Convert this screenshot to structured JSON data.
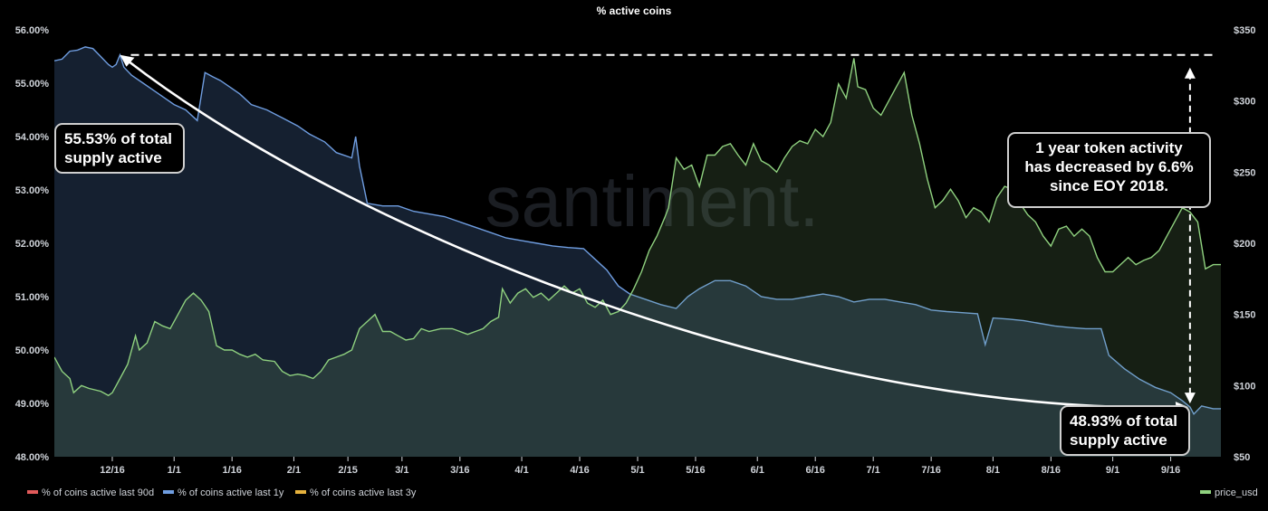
{
  "chart_data": {
    "type": "area",
    "title": "% active coins",
    "watermark": "santiment.",
    "left_axis": {
      "ticks": [
        "48.00%",
        "49.00%",
        "50.00%",
        "51.00%",
        "52.00%",
        "53.00%",
        "54.00%",
        "55.00%",
        "56.00%"
      ],
      "range": [
        48,
        56
      ]
    },
    "right_axis": {
      "ticks": [
        "$50",
        "$100",
        "$150",
        "$200",
        "$250",
        "$300",
        "$350"
      ],
      "range": [
        50,
        350
      ]
    },
    "x_ticks": [
      {
        "label": "12/16",
        "day": 0
      },
      {
        "label": "1/1",
        "day": 16
      },
      {
        "label": "1/16",
        "day": 31
      },
      {
        "label": "2/1",
        "day": 47
      },
      {
        "label": "2/15",
        "day": 61
      },
      {
        "label": "3/1",
        "day": 75
      },
      {
        "label": "3/16",
        "day": 90
      },
      {
        "label": "4/1",
        "day": 106
      },
      {
        "label": "4/16",
        "day": 121
      },
      {
        "label": "5/1",
        "day": 136
      },
      {
        "label": "5/16",
        "day": 151
      },
      {
        "label": "6/1",
        "day": 167
      },
      {
        "label": "6/16",
        "day": 182
      },
      {
        "label": "7/1",
        "day": 197
      },
      {
        "label": "7/16",
        "day": 212
      },
      {
        "label": "8/1",
        "day": 228
      },
      {
        "label": "8/16",
        "day": 243
      },
      {
        "label": "9/1",
        "day": 259
      },
      {
        "label": "9/16",
        "day": 274
      }
    ],
    "x_range": [
      -15,
      287
    ],
    "series": [
      {
        "name": "% of coins active last 1y",
        "color": "#6f9de0",
        "axis": "left",
        "points": [
          [
            -15,
            55.42
          ],
          [
            -13,
            55.45
          ],
          [
            -11,
            55.6
          ],
          [
            -9,
            55.62
          ],
          [
            -7,
            55.68
          ],
          [
            -5,
            55.65
          ],
          [
            -3,
            55.5
          ],
          [
            -1,
            55.35
          ],
          [
            0,
            55.3
          ],
          [
            1,
            55.35
          ],
          [
            2,
            55.53
          ],
          [
            3,
            55.3
          ],
          [
            5,
            55.15
          ],
          [
            8,
            55.0
          ],
          [
            11,
            54.85
          ],
          [
            14,
            54.7
          ],
          [
            16,
            54.6
          ],
          [
            19,
            54.5
          ],
          [
            22,
            54.3
          ],
          [
            24,
            55.2
          ],
          [
            26,
            55.12
          ],
          [
            28,
            55.05
          ],
          [
            30,
            54.95
          ],
          [
            33,
            54.8
          ],
          [
            36,
            54.6
          ],
          [
            40,
            54.5
          ],
          [
            44,
            54.35
          ],
          [
            48,
            54.2
          ],
          [
            51,
            54.05
          ],
          [
            55,
            53.9
          ],
          [
            58,
            53.7
          ],
          [
            62,
            53.6
          ],
          [
            63,
            54.0
          ],
          [
            64,
            53.45
          ],
          [
            66,
            52.75
          ],
          [
            70,
            52.7
          ],
          [
            74,
            52.7
          ],
          [
            78,
            52.6
          ],
          [
            82,
            52.55
          ],
          [
            86,
            52.5
          ],
          [
            90,
            52.4
          ],
          [
            94,
            52.3
          ],
          [
            98,
            52.2
          ],
          [
            102,
            52.1
          ],
          [
            106,
            52.05
          ],
          [
            110,
            52.0
          ],
          [
            114,
            51.95
          ],
          [
            118,
            51.92
          ],
          [
            122,
            51.9
          ],
          [
            125,
            51.7
          ],
          [
            128,
            51.5
          ],
          [
            131,
            51.2
          ],
          [
            134,
            51.05
          ],
          [
            138,
            50.95
          ],
          [
            142,
            50.85
          ],
          [
            146,
            50.78
          ],
          [
            149,
            51.0
          ],
          [
            152,
            51.15
          ],
          [
            156,
            51.3
          ],
          [
            160,
            51.3
          ],
          [
            164,
            51.2
          ],
          [
            168,
            51.0
          ],
          [
            172,
            50.95
          ],
          [
            176,
            50.95
          ],
          [
            180,
            51.0
          ],
          [
            184,
            51.05
          ],
          [
            188,
            51.0
          ],
          [
            192,
            50.9
          ],
          [
            196,
            50.95
          ],
          [
            200,
            50.95
          ],
          [
            204,
            50.9
          ],
          [
            208,
            50.85
          ],
          [
            212,
            50.75
          ],
          [
            216,
            50.72
          ],
          [
            220,
            50.7
          ],
          [
            224,
            50.68
          ],
          [
            226,
            50.1
          ],
          [
            228,
            50.6
          ],
          [
            232,
            50.58
          ],
          [
            236,
            50.55
          ],
          [
            240,
            50.5
          ],
          [
            244,
            50.45
          ],
          [
            248,
            50.42
          ],
          [
            252,
            50.4
          ],
          [
            256,
            50.4
          ],
          [
            258,
            49.9
          ],
          [
            262,
            49.65
          ],
          [
            266,
            49.45
          ],
          [
            270,
            49.3
          ],
          [
            274,
            49.2
          ],
          [
            277,
            49.05
          ],
          [
            279,
            48.93
          ],
          [
            280,
            48.8
          ],
          [
            282,
            48.95
          ],
          [
            285,
            48.9
          ],
          [
            287,
            48.9
          ]
        ]
      },
      {
        "name": "price_usd",
        "color": "#8fd17f",
        "axis": "right",
        "points": [
          [
            -15,
            120
          ],
          [
            -13,
            110
          ],
          [
            -11,
            105
          ],
          [
            -10,
            95
          ],
          [
            -8,
            100
          ],
          [
            -6,
            98
          ],
          [
            -3,
            96
          ],
          [
            -1,
            93
          ],
          [
            0,
            95
          ],
          [
            2,
            105
          ],
          [
            4,
            115
          ],
          [
            6,
            135
          ],
          [
            7,
            125
          ],
          [
            9,
            130
          ],
          [
            11,
            145
          ],
          [
            13,
            142
          ],
          [
            15,
            140
          ],
          [
            17,
            150
          ],
          [
            19,
            160
          ],
          [
            21,
            165
          ],
          [
            23,
            160
          ],
          [
            25,
            152
          ],
          [
            27,
            128
          ],
          [
            29,
            125
          ],
          [
            31,
            125
          ],
          [
            33,
            122
          ],
          [
            35,
            120
          ],
          [
            37,
            122
          ],
          [
            39,
            118
          ],
          [
            42,
            117
          ],
          [
            44,
            110
          ],
          [
            46,
            107
          ],
          [
            48,
            108
          ],
          [
            50,
            107
          ],
          [
            52,
            105
          ],
          [
            54,
            110
          ],
          [
            56,
            118
          ],
          [
            58,
            120
          ],
          [
            60,
            122
          ],
          [
            62,
            125
          ],
          [
            64,
            140
          ],
          [
            66,
            145
          ],
          [
            68,
            150
          ],
          [
            70,
            138
          ],
          [
            72,
            138
          ],
          [
            74,
            135
          ],
          [
            76,
            132
          ],
          [
            78,
            133
          ],
          [
            80,
            140
          ],
          [
            82,
            138
          ],
          [
            85,
            140
          ],
          [
            88,
            140
          ],
          [
            90,
            138
          ],
          [
            92,
            136
          ],
          [
            94,
            138
          ],
          [
            96,
            140
          ],
          [
            98,
            145
          ],
          [
            100,
            148
          ],
          [
            101,
            168
          ],
          [
            103,
            158
          ],
          [
            105,
            165
          ],
          [
            107,
            168
          ],
          [
            109,
            162
          ],
          [
            111,
            165
          ],
          [
            113,
            160
          ],
          [
            115,
            165
          ],
          [
            117,
            170
          ],
          [
            119,
            165
          ],
          [
            121,
            168
          ],
          [
            123,
            158
          ],
          [
            125,
            155
          ],
          [
            127,
            160
          ],
          [
            129,
            150
          ],
          [
            131,
            152
          ],
          [
            133,
            158
          ],
          [
            135,
            168
          ],
          [
            137,
            180
          ],
          [
            139,
            195
          ],
          [
            141,
            205
          ],
          [
            143,
            218
          ],
          [
            144,
            225
          ],
          [
            146,
            260
          ],
          [
            148,
            252
          ],
          [
            150,
            255
          ],
          [
            152,
            240
          ],
          [
            154,
            262
          ],
          [
            156,
            262
          ],
          [
            158,
            268
          ],
          [
            160,
            270
          ],
          [
            162,
            262
          ],
          [
            164,
            255
          ],
          [
            166,
            270
          ],
          [
            168,
            258
          ],
          [
            170,
            255
          ],
          [
            172,
            250
          ],
          [
            174,
            260
          ],
          [
            176,
            268
          ],
          [
            178,
            272
          ],
          [
            180,
            270
          ],
          [
            182,
            280
          ],
          [
            184,
            275
          ],
          [
            186,
            285
          ],
          [
            188,
            312
          ],
          [
            190,
            302
          ],
          [
            192,
            330
          ],
          [
            193,
            310
          ],
          [
            195,
            308
          ],
          [
            197,
            295
          ],
          [
            199,
            290
          ],
          [
            201,
            300
          ],
          [
            203,
            310
          ],
          [
            205,
            320
          ],
          [
            207,
            290
          ],
          [
            209,
            270
          ],
          [
            211,
            245
          ],
          [
            213,
            225
          ],
          [
            215,
            230
          ],
          [
            217,
            238
          ],
          [
            219,
            230
          ],
          [
            221,
            218
          ],
          [
            223,
            225
          ],
          [
            225,
            222
          ],
          [
            227,
            215
          ],
          [
            229,
            232
          ],
          [
            231,
            240
          ],
          [
            233,
            238
          ],
          [
            235,
            228
          ],
          [
            237,
            220
          ],
          [
            239,
            215
          ],
          [
            241,
            205
          ],
          [
            243,
            198
          ],
          [
            245,
            210
          ],
          [
            247,
            212
          ],
          [
            249,
            205
          ],
          [
            251,
            210
          ],
          [
            253,
            205
          ],
          [
            255,
            190
          ],
          [
            257,
            180
          ],
          [
            259,
            180
          ],
          [
            261,
            185
          ],
          [
            263,
            190
          ],
          [
            265,
            185
          ],
          [
            267,
            188
          ],
          [
            269,
            190
          ],
          [
            271,
            195
          ],
          [
            273,
            205
          ],
          [
            275,
            215
          ],
          [
            277,
            225
          ],
          [
            279,
            222
          ],
          [
            281,
            215
          ],
          [
            283,
            182
          ],
          [
            285,
            185
          ],
          [
            287,
            185
          ]
        ]
      }
    ],
    "annotations": [
      {
        "text_lines": [
          "55.53% of total",
          "supply active"
        ]
      },
      {
        "text_lines": [
          "1 year token activity",
          "has decreased by 6.6%",
          "since EOY 2018."
        ]
      },
      {
        "text_lines": [
          "48.93% of total",
          "supply active"
        ]
      }
    ],
    "legend": [
      {
        "label": "% of coins active last 90d",
        "color": "#e05a5a"
      },
      {
        "label": "% of coins active last 1y",
        "color": "#6f9de0"
      },
      {
        "label": "% of coins active last 3y",
        "color": "#e6b23d"
      },
      {
        "label": "price_usd",
        "color": "#8fd17f"
      }
    ],
    "legend_placement": "bottom",
    "grid": false
  }
}
